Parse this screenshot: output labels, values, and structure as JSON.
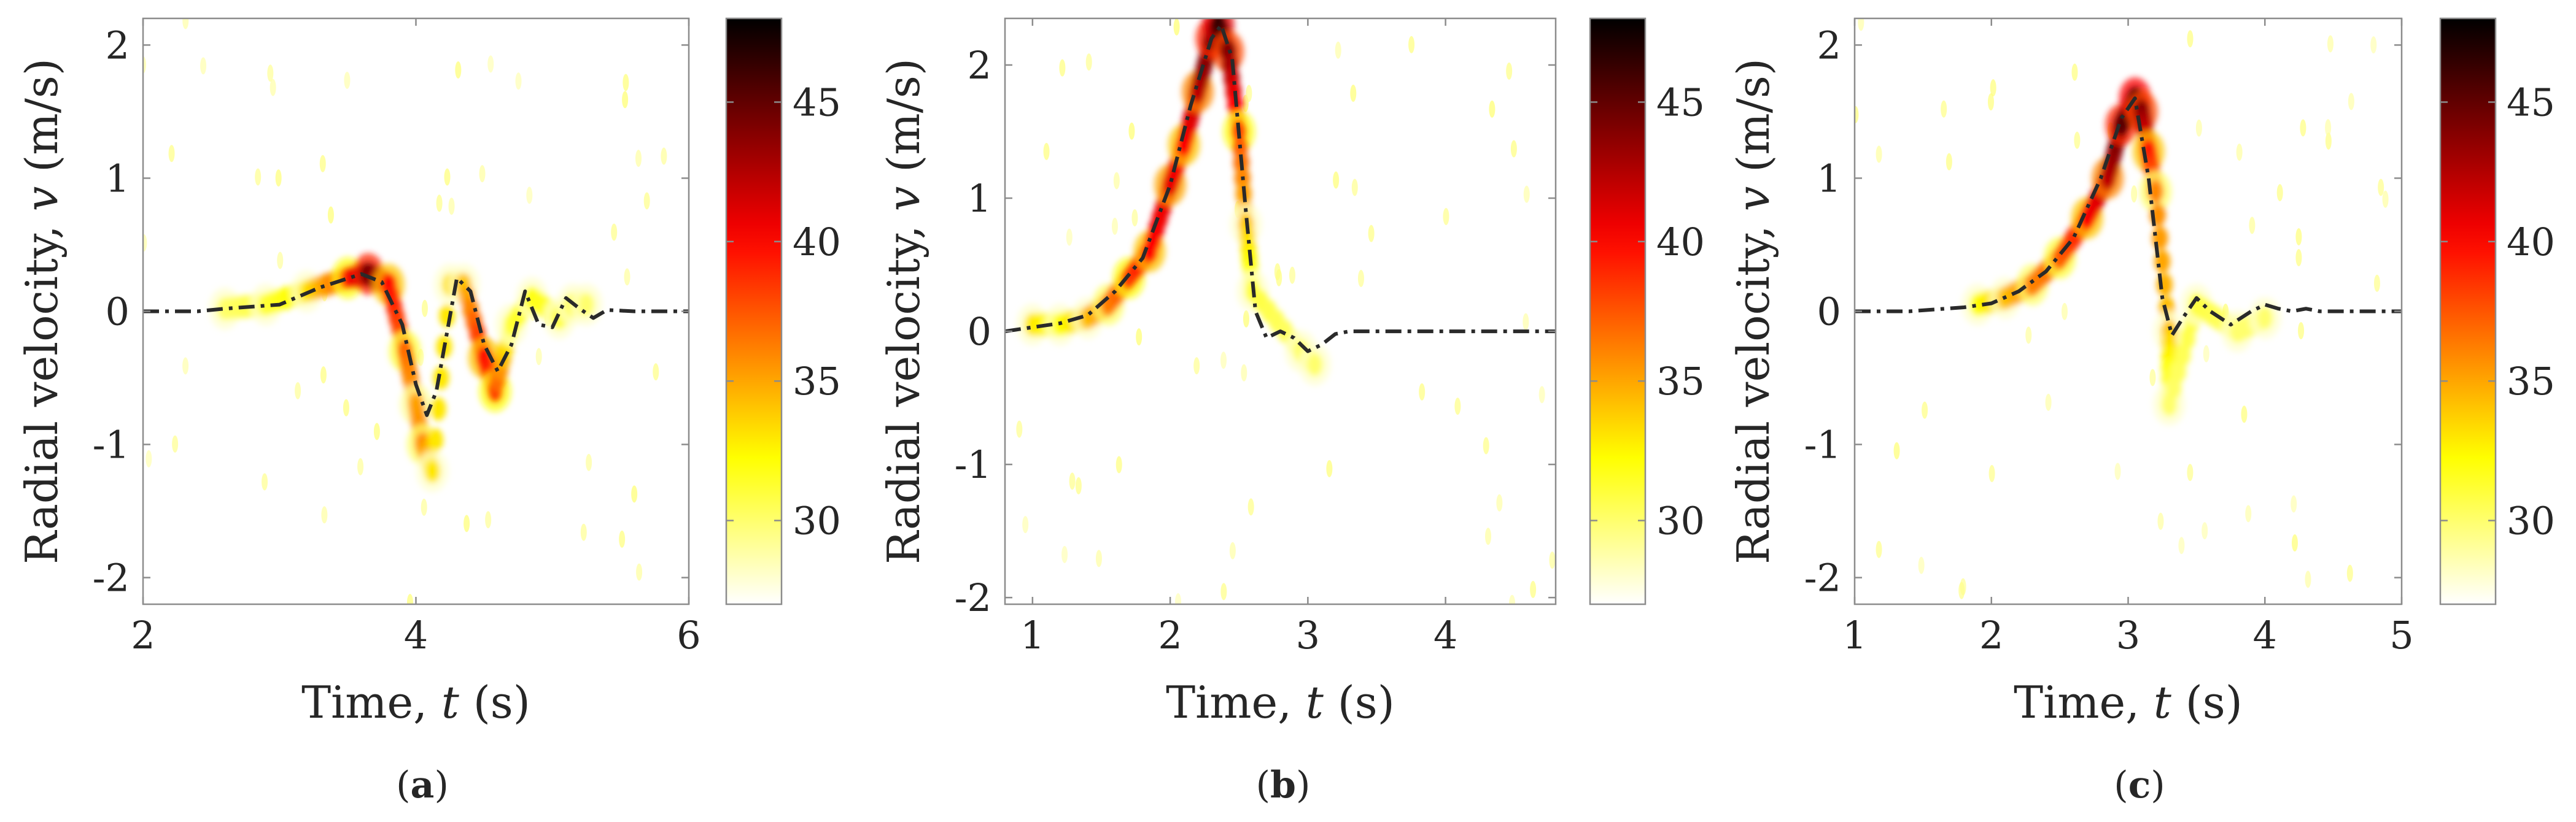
{
  "figure": {
    "colors": {
      "trace": "#2a2a2a",
      "frame": "#8c8c8c",
      "text": "#262626"
    },
    "colormap": "hot-reversed",
    "shared_colorbar": {
      "range": [
        27,
        48
      ],
      "ticks": [
        30,
        35,
        40,
        45
      ]
    },
    "panels_text": {
      "ylabel_base": "Radial velocity, ",
      "ylabel_var": "v",
      "ylabel_unit": " (m/s)",
      "xlabel_base": "Time, ",
      "xlabel_var": "t",
      "xlabel_unit": " (s)"
    }
  },
  "chart_data": [
    {
      "type": "heatmap",
      "caption": "(a)",
      "title": "",
      "xlabel": "Time, t (s)",
      "ylabel": "Radial velocity, v (m/s)",
      "xlim": [
        2,
        6
      ],
      "ylim": [
        -2.2,
        2.2
      ],
      "xticks": [
        2,
        4,
        6
      ],
      "yticks": [
        -2,
        -1,
        0,
        1,
        2
      ],
      "xticklabels": [
        "2",
        "4",
        "6"
      ],
      "yticklabels": [
        "-2",
        "-1",
        "0",
        "1",
        "2"
      ],
      "colorbar": {
        "min": 27,
        "max": 48,
        "ticks": [
          30,
          35,
          40,
          45
        ],
        "ticklabels": [
          "30",
          "35",
          "40",
          "45"
        ]
      },
      "series": [
        {
          "name": "estimated velocity (dash-dot)",
          "x": [
            2.0,
            2.4,
            2.6,
            3.0,
            3.3,
            3.6,
            3.75,
            3.9,
            4.0,
            4.08,
            4.15,
            4.3,
            4.4,
            4.5,
            4.6,
            4.7,
            4.8,
            4.9,
            5.0,
            5.1,
            5.2,
            5.3,
            5.4,
            5.6,
            6.0
          ],
          "y": [
            0,
            0,
            0.02,
            0.05,
            0.18,
            0.28,
            0.22,
            -0.1,
            -0.55,
            -0.78,
            -0.6,
            0.25,
            0.15,
            -0.25,
            -0.45,
            -0.25,
            0.15,
            -0.1,
            -0.12,
            0.1,
            0.02,
            -0.05,
            0.01,
            0,
            0
          ]
        }
      ],
      "intensity_ridge": {
        "t": [
          2.6,
          2.9,
          3.2,
          3.5,
          3.65,
          3.8,
          3.92,
          4.0,
          4.05,
          4.12,
          4.25,
          4.35,
          4.5,
          4.58,
          4.7,
          4.85,
          5.05,
          5.15,
          5.25
        ],
        "v": [
          0.02,
          0.05,
          0.15,
          0.25,
          0.28,
          0.2,
          -0.3,
          -0.7,
          -1.0,
          -1.2,
          0.2,
          0.2,
          -0.35,
          -0.6,
          -0.1,
          0.1,
          -0.05,
          0.05,
          0.05
        ],
        "level": [
          30,
          31,
          33,
          38,
          45,
          40,
          37,
          35,
          36,
          33,
          33,
          34,
          40,
          38,
          31,
          32,
          31,
          31,
          30
        ]
      }
    },
    {
      "type": "heatmap",
      "caption": "(b)",
      "title": "",
      "xlabel": "Time, t (s)",
      "ylabel": "Radial velocity, v (m/s)",
      "xlim": [
        0.8,
        4.8
      ],
      "ylim": [
        -2.05,
        2.35
      ],
      "xticks": [
        1,
        2,
        3,
        4
      ],
      "yticks": [
        -2,
        -1,
        0,
        1,
        2
      ],
      "xticklabels": [
        "1",
        "2",
        "3",
        "4"
      ],
      "yticklabels": [
        "-2",
        "-1",
        "0",
        "1",
        "2"
      ],
      "colorbar": {
        "min": 27,
        "max": 48,
        "ticks": [
          30,
          35,
          40,
          45
        ],
        "ticklabels": [
          "30",
          "35",
          "40",
          "45"
        ]
      },
      "series": [
        {
          "name": "estimated velocity (dash-dot)",
          "x": [
            0.8,
            1.0,
            1.2,
            1.4,
            1.6,
            1.8,
            2.0,
            2.15,
            2.3,
            2.37,
            2.45,
            2.55,
            2.62,
            2.7,
            2.8,
            2.9,
            3.0,
            3.1,
            3.2,
            3.3,
            3.4,
            4.8
          ],
          "y": [
            0,
            0.03,
            0.06,
            0.12,
            0.3,
            0.55,
            1.1,
            1.7,
            2.2,
            2.3,
            2.05,
            0.9,
            0.15,
            -0.05,
            0.0,
            -0.05,
            -0.15,
            -0.1,
            -0.02,
            0,
            0,
            0
          ]
        }
      ],
      "intensity_ridge": {
        "t": [
          1.0,
          1.2,
          1.4,
          1.55,
          1.7,
          1.85,
          2.0,
          2.1,
          2.2,
          2.3,
          2.35,
          2.42,
          2.5,
          2.55,
          2.6,
          2.95,
          3.05
        ],
        "v": [
          0.05,
          0.05,
          0.1,
          0.2,
          0.4,
          0.6,
          1.1,
          1.4,
          1.8,
          2.2,
          2.3,
          2.1,
          1.5,
          0.8,
          0.3,
          -0.15,
          -0.25
        ],
        "level": [
          33,
          32,
          34,
          36,
          38,
          40,
          41,
          40,
          42,
          45,
          47,
          44,
          38,
          34,
          31,
          30,
          30
        ]
      }
    },
    {
      "type": "heatmap",
      "caption": "(c)",
      "title": "",
      "xlabel": "Time, t (s)",
      "ylabel": "Radial velocity, v (m/s)",
      "xlim": [
        1,
        5
      ],
      "ylim": [
        -2.2,
        2.2
      ],
      "xticks": [
        1,
        2,
        3,
        4,
        5
      ],
      "yticks": [
        -2,
        -1,
        0,
        1,
        2
      ],
      "xticklabels": [
        "1",
        "2",
        "3",
        "4",
        "5"
      ],
      "yticklabels": [
        "-2",
        "-1",
        "0",
        "1",
        "2"
      ],
      "colorbar": {
        "min": 27,
        "max": 48,
        "ticks": [
          30,
          35,
          40,
          45
        ],
        "ticklabels": [
          "30",
          "35",
          "40",
          "45"
        ]
      },
      "series": [
        {
          "name": "estimated velocity (dash-dot)",
          "x": [
            1.0,
            1.4,
            1.8,
            2.0,
            2.2,
            2.4,
            2.6,
            2.8,
            2.95,
            3.05,
            3.15,
            3.25,
            3.32,
            3.4,
            3.5,
            3.6,
            3.75,
            3.9,
            4.0,
            4.1,
            4.2,
            4.3,
            4.4,
            5.0
          ],
          "y": [
            0,
            0,
            0.03,
            0.06,
            0.15,
            0.3,
            0.55,
            1.0,
            1.45,
            1.6,
            1.0,
            0.1,
            -0.18,
            -0.05,
            0.1,
            0.0,
            -0.1,
            0.0,
            0.05,
            0.02,
            0,
            0.02,
            0,
            0
          ]
        }
      ],
      "intensity_ridge": {
        "t": [
          1.9,
          2.1,
          2.3,
          2.5,
          2.7,
          2.85,
          2.95,
          3.05,
          3.1,
          3.15,
          3.2,
          3.3,
          3.3,
          3.5,
          3.8,
          4.0
        ],
        "v": [
          0.05,
          0.1,
          0.2,
          0.4,
          0.7,
          1.0,
          1.4,
          1.6,
          1.5,
          1.2,
          0.9,
          -0.15,
          -0.7,
          0.05,
          -0.15,
          -0.05
        ],
        "level": [
          32,
          34,
          36,
          37,
          40,
          42,
          45,
          46,
          44,
          40,
          36,
          34,
          30,
          31,
          30,
          30
        ]
      }
    }
  ]
}
